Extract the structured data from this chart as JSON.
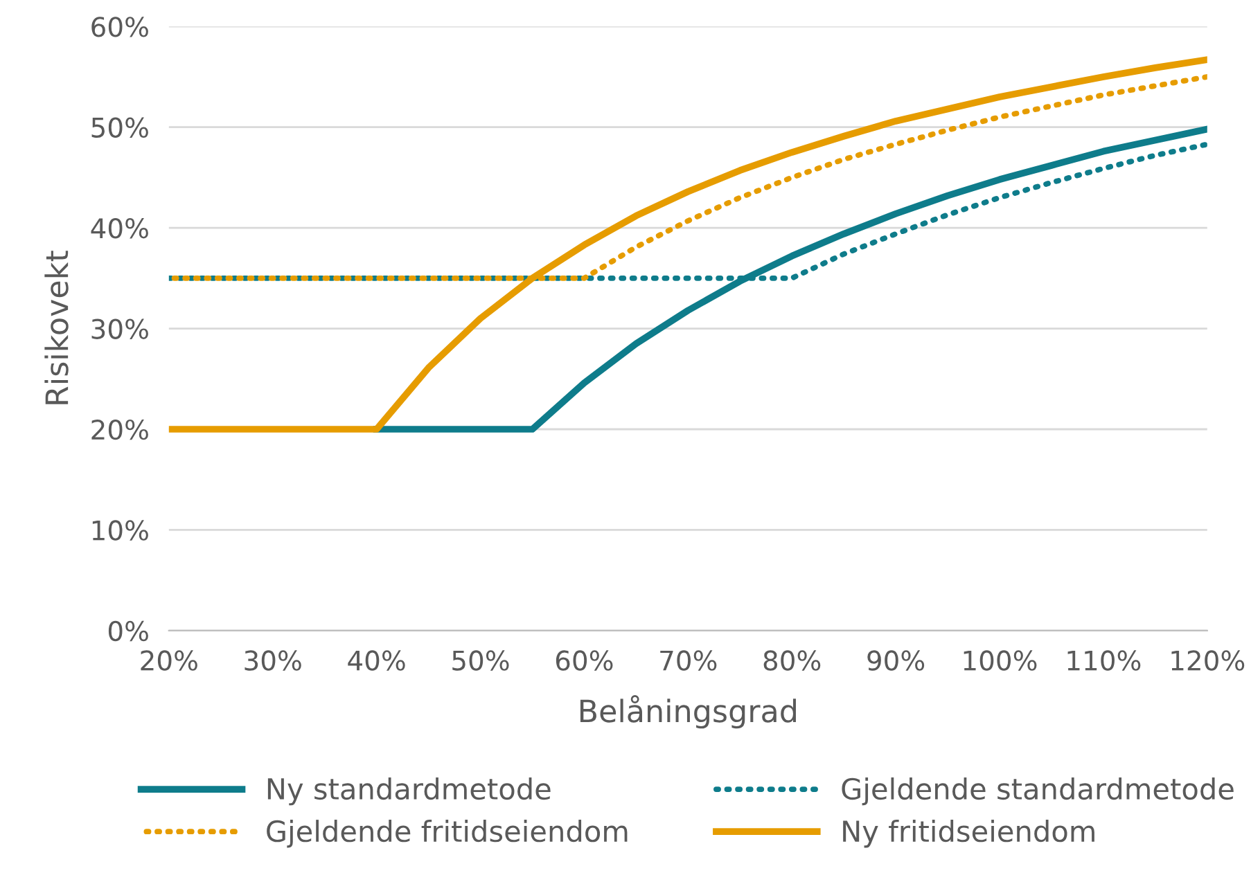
{
  "chart_data": {
    "type": "line",
    "xlabel": "Belåningsgrad",
    "ylabel": "Risikovekt",
    "xlim": [
      20,
      120
    ],
    "ylim": [
      0,
      60
    ],
    "xticks": [
      {
        "value": 20,
        "label": "20%"
      },
      {
        "value": 30,
        "label": "30%"
      },
      {
        "value": 40,
        "label": "40%"
      },
      {
        "value": 50,
        "label": "50%"
      },
      {
        "value": 60,
        "label": "60%"
      },
      {
        "value": 70,
        "label": "70%"
      },
      {
        "value": 80,
        "label": "80%"
      },
      {
        "value": 90,
        "label": "90%"
      },
      {
        "value": 100,
        "label": "100%"
      },
      {
        "value": 110,
        "label": "110%"
      },
      {
        "value": 120,
        "label": "120%"
      }
    ],
    "yticks": [
      {
        "value": 0,
        "label": "0%"
      },
      {
        "value": 10,
        "label": "10%"
      },
      {
        "value": 20,
        "label": "20%"
      },
      {
        "value": 30,
        "label": "30%"
      },
      {
        "value": 40,
        "label": "40%"
      },
      {
        "value": 50,
        "label": "50%"
      },
      {
        "value": 60,
        "label": "60%"
      }
    ],
    "grid": "y",
    "legend": "bottom",
    "marker": "none",
    "series": [
      {
        "name": "Ny standardmetode",
        "color": "#0e7c8b",
        "line_style": "solid",
        "x": [
          40,
          55,
          60,
          65,
          70,
          75,
          80,
          85,
          90,
          95,
          100,
          105,
          110,
          115,
          120
        ],
        "values": [
          20,
          20,
          24.6,
          28.5,
          31.8,
          34.7,
          37.2,
          39.4,
          41.4,
          43.2,
          44.8,
          46.2,
          47.6,
          48.7,
          49.8
        ]
      },
      {
        "name": "Gjeldende standardmetode",
        "color": "#0e7c8b",
        "line_style": "dotted",
        "x": [
          20,
          80,
          85,
          90,
          95,
          100,
          105,
          110,
          115,
          120
        ],
        "values": [
          35,
          35,
          37.4,
          39.4,
          41.3,
          43.0,
          44.5,
          45.9,
          47.2,
          48.3
        ]
      },
      {
        "name": "Gjeldende fritidseiendom",
        "color": "#e69c00",
        "line_style": "dotted",
        "x": [
          20,
          60,
          65,
          70,
          75,
          80,
          85,
          90,
          95,
          100,
          105,
          110,
          115,
          120
        ],
        "values": [
          35,
          35,
          38.1,
          40.7,
          43.0,
          45.0,
          46.8,
          48.3,
          49.7,
          51.0,
          52.1,
          53.2,
          54.1,
          55.0
        ]
      },
      {
        "name": "Ny fritidseiendom",
        "color": "#e69c00",
        "line_style": "solid",
        "x": [
          20,
          40,
          45,
          50,
          55,
          60,
          65,
          70,
          75,
          80,
          85,
          90,
          95,
          100,
          105,
          110,
          115,
          120
        ],
        "values": [
          20,
          20,
          26.1,
          31.0,
          35.0,
          38.3,
          41.2,
          43.6,
          45.7,
          47.5,
          49.1,
          50.6,
          51.8,
          53.0,
          54.0,
          55.0,
          55.9,
          56.7
        ]
      }
    ]
  }
}
